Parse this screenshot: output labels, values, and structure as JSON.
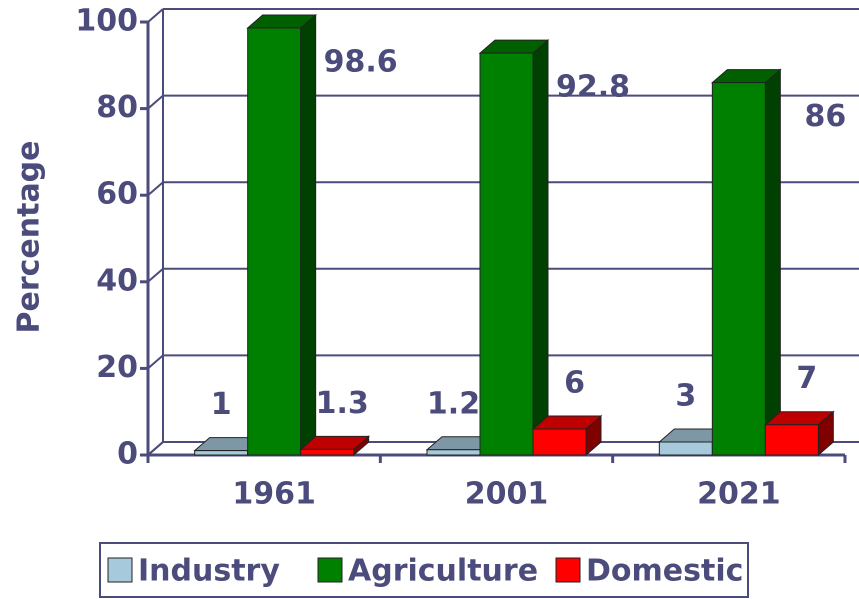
{
  "chart_data": {
    "type": "bar3d",
    "y_label": "Percentage",
    "categories": [
      "1961",
      "2001",
      "2021"
    ],
    "series": [
      {
        "name": "Industry",
        "color": "#a6cadb",
        "values": [
          1,
          1.2,
          3
        ]
      },
      {
        "name": "Agriculture",
        "color": "#008000",
        "values": [
          98.6,
          92.8,
          86
        ]
      },
      {
        "name": "Domestic",
        "color": "#ff0000",
        "values": [
          1.3,
          6,
          7
        ]
      }
    ],
    "ylim": [
      0,
      100
    ],
    "yticks": [
      0,
      20,
      40,
      60,
      80,
      100
    ],
    "grid": true,
    "legend": "bottom"
  }
}
